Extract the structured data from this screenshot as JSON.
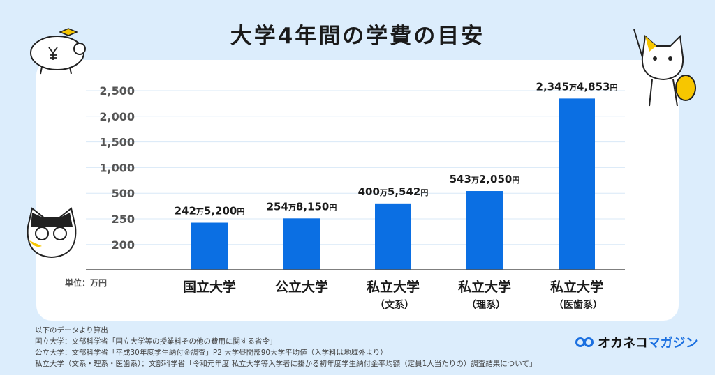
{
  "title": "大学4年間の学費の目安",
  "chart_data": {
    "type": "bar",
    "title": "大学4年間の学費の目安",
    "unit_label": "単位：万円",
    "yticks": [
      "2,500",
      "2,000",
      "1,500",
      "1,000",
      "500",
      "250",
      "200"
    ],
    "ytick_values": [
      2500,
      2000,
      1500,
      1000,
      500,
      250,
      200
    ],
    "grid": true,
    "categories": [
      {
        "line1": "国立大学",
        "line2": ""
      },
      {
        "line1": "公立大学",
        "line2": ""
      },
      {
        "line1": "私立大学",
        "line2": "（文系）"
      },
      {
        "line1": "私立大学",
        "line2": "（理系）"
      },
      {
        "line1": "私立大学",
        "line2": "（医歯系）"
      }
    ],
    "values": [
      242.52,
      254.815,
      400.5542,
      543.205,
      2345.4853
    ],
    "data_labels": [
      {
        "man": "242",
        "man_unit": "万",
        "rest": "5,200",
        "yen": "円"
      },
      {
        "man": "254",
        "man_unit": "万",
        "rest": "8,150",
        "yen": "円"
      },
      {
        "man": "400",
        "man_unit": "万",
        "rest": "5,542",
        "yen": "円"
      },
      {
        "man": "543",
        "man_unit": "万",
        "rest": "2,050",
        "yen": "円"
      },
      {
        "man": "2,345",
        "man_unit": "万",
        "rest": "4,853",
        "yen": "円"
      }
    ],
    "bar_color": "#0b6fe3"
  },
  "notes": [
    "以下のデータより算出",
    "国立大学：文部科学省「国立大学等の授業料その他の費用に関する省令」",
    "公立大学：文部科学省「平成30年度学生納付金調査」P2 大学昼間部90大学平均値（入学料は地域外より）",
    "私立大学（文系・理系・医歯系）：文部科学省「令和元年度 私立大学等入学者に掛かる初年度学生納付金平均額（定員1人当たりの）調査結果について」"
  ],
  "logo": {
    "part1": "オカネコ",
    "part2": "マガジン"
  },
  "colors": {
    "background": "#dcedfc",
    "accent": "#1a6fe0",
    "character_yellow": "#f7c600"
  }
}
